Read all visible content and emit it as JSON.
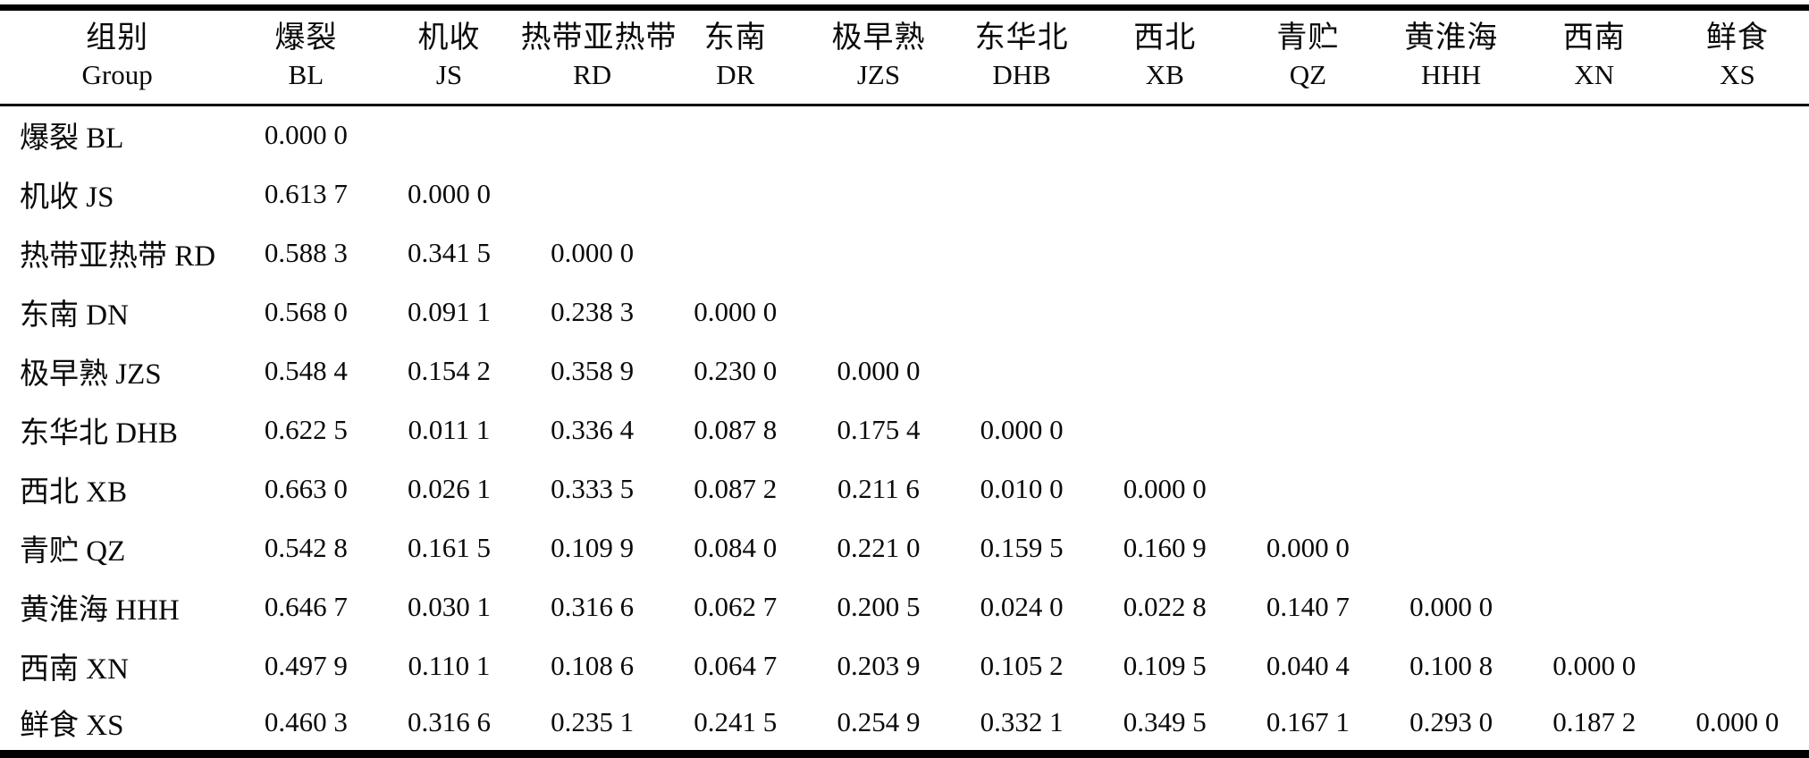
{
  "table": {
    "columns": [
      {
        "cn": "组别",
        "en": "Group"
      },
      {
        "cn": "爆裂",
        "en": "BL"
      },
      {
        "cn": "机收",
        "en": "JS"
      },
      {
        "cn": "热带亚热带",
        "en": "RD"
      },
      {
        "cn": "东南",
        "en": "DR"
      },
      {
        "cn": "极早熟",
        "en": "JZS"
      },
      {
        "cn": "东华北",
        "en": "DHB"
      },
      {
        "cn": "西北",
        "en": "XB"
      },
      {
        "cn": "青贮",
        "en": "QZ"
      },
      {
        "cn": "黄淮海",
        "en": "HHH"
      },
      {
        "cn": "西南",
        "en": "XN"
      },
      {
        "cn": "鲜食",
        "en": "XS"
      }
    ],
    "rows": [
      {
        "label": "爆裂 BL",
        "values": [
          "0.000 0"
        ]
      },
      {
        "label": "机收 JS",
        "values": [
          "0.613 7",
          "0.000 0"
        ]
      },
      {
        "label": "热带亚热带 RD",
        "values": [
          "0.588 3",
          "0.341 5",
          "0.000 0"
        ]
      },
      {
        "label": "东南 DN",
        "values": [
          "0.568 0",
          "0.091 1",
          "0.238 3",
          "0.000 0"
        ]
      },
      {
        "label": "极早熟 JZS",
        "values": [
          "0.548 4",
          "0.154 2",
          "0.358 9",
          "0.230 0",
          "0.000 0"
        ]
      },
      {
        "label": "东华北 DHB",
        "values": [
          "0.622 5",
          "0.011 1",
          "0.336 4",
          "0.087 8",
          "0.175 4",
          "0.000 0"
        ]
      },
      {
        "label": "西北 XB",
        "values": [
          "0.663 0",
          "0.026 1",
          "0.333 5",
          "0.087 2",
          "0.211 6",
          "0.010 0",
          "0.000 0"
        ]
      },
      {
        "label": "青贮 QZ",
        "values": [
          "0.542 8",
          "0.161 5",
          "0.109 9",
          "0.084 0",
          "0.221 0",
          "0.159 5",
          "0.160 9",
          "0.000 0"
        ]
      },
      {
        "label": "黄淮海 HHH",
        "values": [
          "0.646 7",
          "0.030 1",
          "0.316 6",
          "0.062 7",
          "0.200 5",
          "0.024 0",
          "0.022 8",
          "0.140 7",
          "0.000 0"
        ]
      },
      {
        "label": "西南 XN",
        "values": [
          "0.497 9",
          "0.110 1",
          "0.108 6",
          "0.064 7",
          "0.203 9",
          "0.105 2",
          "0.109 5",
          "0.040 4",
          "0.100 8",
          "0.000 0"
        ]
      },
      {
        "label": "鲜食 XS",
        "values": [
          "0.460 3",
          "0.316 6",
          "0.235 1",
          "0.241 5",
          "0.254 9",
          "0.332 1",
          "0.349 5",
          "0.167 1",
          "0.293 0",
          "0.187 2",
          "0.000 0"
        ]
      }
    ]
  },
  "chart_data": {
    "type": "table",
    "columns": [
      "组别 Group",
      "爆裂 BL",
      "机收 JS",
      "热带亚热带 RD",
      "东南 DR",
      "极早熟 JZS",
      "东华北 DHB",
      "西北 XB",
      "青贮 QZ",
      "黄淮海 HHH",
      "西南 XN",
      "鲜食 XS"
    ],
    "rows": [
      [
        "爆裂 BL",
        0.0
      ],
      [
        "机收 JS",
        0.6137,
        0.0
      ],
      [
        "热带亚热带 RD",
        0.5883,
        0.3415,
        0.0
      ],
      [
        "东南 DN",
        0.568,
        0.0911,
        0.2383,
        0.0
      ],
      [
        "极早熟 JZS",
        0.5484,
        0.1542,
        0.3589,
        0.23,
        0.0
      ],
      [
        "东华北 DHB",
        0.6225,
        0.0111,
        0.3364,
        0.0878,
        0.1754,
        0.0
      ],
      [
        "西北 XB",
        0.663,
        0.0261,
        0.3335,
        0.0872,
        0.2116,
        0.01,
        0.0
      ],
      [
        "青贮 QZ",
        0.5428,
        0.1615,
        0.1099,
        0.084,
        0.221,
        0.1595,
        0.1609,
        0.0
      ],
      [
        "黄淮海 HHH",
        0.6467,
        0.0301,
        0.3166,
        0.0627,
        0.2005,
        0.024,
        0.0228,
        0.1407,
        0.0
      ],
      [
        "西南 XN",
        0.4979,
        0.1101,
        0.1086,
        0.0647,
        0.2039,
        0.1052,
        0.1095,
        0.0404,
        0.1008,
        0.0
      ],
      [
        "鲜食 XS",
        0.4603,
        0.3166,
        0.2351,
        0.2415,
        0.2549,
        0.3321,
        0.3495,
        0.1671,
        0.293,
        0.1872,
        0.0
      ]
    ],
    "layout": "lower-triangular distance matrix, three-line (booktabs) table style"
  }
}
